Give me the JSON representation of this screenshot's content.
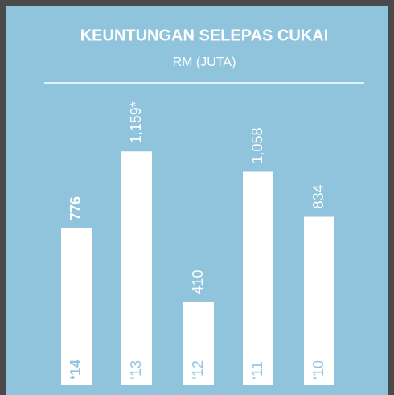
{
  "chart_data": {
    "type": "bar",
    "title": "KEUNTUNGAN SELEPAS CUKAI",
    "subtitle": "RM (JUTA)",
    "categories": [
      "‘14",
      "‘13",
      "‘12",
      "‘11",
      "‘10"
    ],
    "values": [
      776,
      1159,
      410,
      1058,
      834
    ],
    "value_labels": [
      "776",
      "1,159*",
      "410",
      "1,058",
      "834"
    ],
    "color": "#ffffff"
  }
}
